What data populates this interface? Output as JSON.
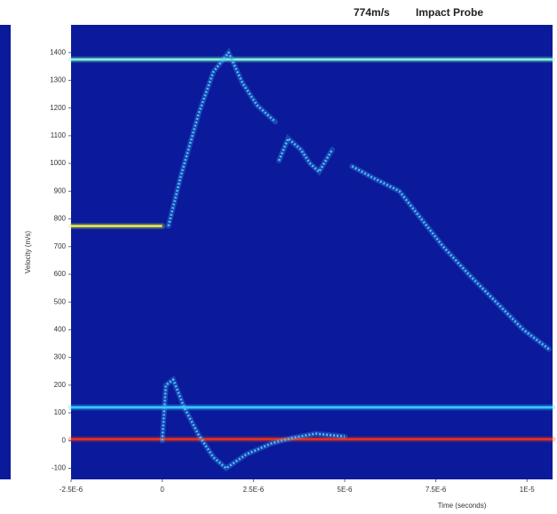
{
  "chart_data": {
    "type": "line",
    "title": "774m/s",
    "subtitle": "Impact Probe",
    "xlabel": "Time (seconds)",
    "ylabel": "Velocity (m/s)",
    "xlim": [
      -2.5e-06,
      1.07e-05
    ],
    "ylim": [
      -140,
      1500
    ],
    "xticks": [
      {
        "value": -2.5e-06,
        "label": "-2.5E-6"
      },
      0,
      {
        "value": 2.5e-06,
        "label": "2.5E-6"
      },
      {
        "value": 5e-06,
        "label": "5E-6"
      },
      {
        "value": 7.5e-06,
        "label": "7.5E-6"
      },
      {
        "value": 1e-05,
        "label": "1E-5"
      }
    ],
    "yticks": [
      -100,
      0,
      100,
      200,
      300,
      400,
      500,
      600,
      700,
      800,
      900,
      1000,
      1100,
      1200,
      1300,
      1400
    ],
    "background": "#0a1a9a",
    "series": [
      {
        "color": "#7ff0d0",
        "x": [
          -2.5e-06,
          1.07e-05
        ],
        "values": [
          1375,
          1375
        ]
      },
      {
        "color": "#d8e04a",
        "x": [
          -2.5e-06,
          0
        ],
        "values": [
          774,
          774
        ]
      },
      {
        "color": "#33c8ff",
        "x": [
          -2.5e-06,
          1.07e-05
        ],
        "values": [
          120,
          120
        ]
      },
      {
        "color": "#e03020",
        "x": [
          -2.5e-06,
          1.07e-05
        ],
        "values": [
          5,
          5
        ]
      },
      {
        "color": "#4cc0ff",
        "x": [
          1.7e-07,
          5e-07,
          1e-06,
          1.4e-06,
          1.82e-06,
          2.2e-06,
          2.6e-06,
          3.1e-06,
          null,
          3.2e-06,
          3.45e-06,
          3.8e-06,
          4.05e-06,
          4.3e-06,
          4.66e-06,
          null,
          5.2e-06,
          5.75e-06,
          6.5e-06,
          7.1e-06,
          7.7e-06,
          8.4e-06,
          9.15e-06,
          9.9e-06,
          1.06e-05
        ],
        "values": [
          774,
          950,
          1180,
          1330,
          1400,
          1290,
          1210,
          1150,
          null,
          1010,
          1090,
          1050,
          1000,
          970,
          1050,
          null,
          990,
          950,
          900,
          800,
          700,
          600,
          500,
          400,
          330
        ]
      },
      {
        "color": "#4cc0ff",
        "x": [
          0,
          1e-07,
          3e-07,
          6e-07,
          1e-06,
          1.4e-06,
          1.75e-06,
          2.3e-06,
          3e-06,
          3.57e-06,
          4.2e-06,
          5e-06
        ],
        "values": [
          0,
          200,
          220,
          120,
          20,
          -60,
          -100,
          -50,
          -10,
          10,
          25,
          15
        ]
      }
    ]
  }
}
